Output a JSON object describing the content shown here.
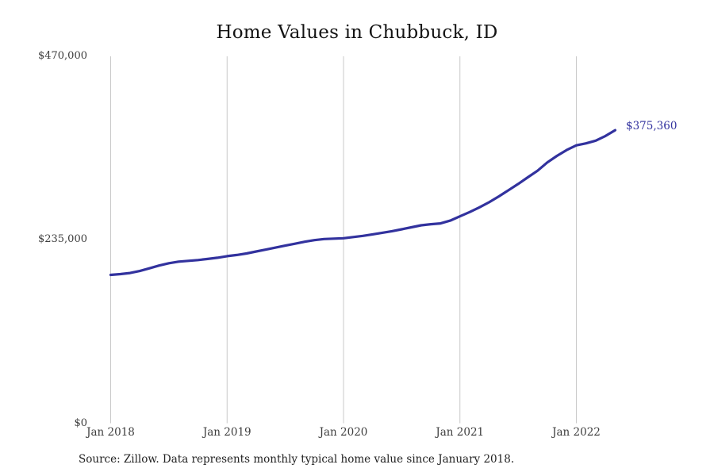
{
  "chart": {
    "title": "Home Values in Chubbuck, ID",
    "end_label": "$375,360",
    "source": "Source: Zillow. Data represents monthly typical home value since January 2018."
  },
  "chart_data": {
    "type": "line",
    "title": "Home Values in Chubbuck, ID",
    "xlabel": "",
    "ylabel": "",
    "ylim": [
      0,
      470000
    ],
    "grid": "vertical-only",
    "legend": "none",
    "line_color": "#32329e",
    "gridline_color": "#c9c9c9",
    "annotation_color": "#32329e",
    "end_annotation": "$375,360",
    "y_ticks": [
      {
        "value": 0,
        "label": "$0"
      },
      {
        "value": 235000,
        "label": "$235,000"
      },
      {
        "value": 470000,
        "label": "$470,000"
      }
    ],
    "x_tick_labels": [
      "Jan 2018",
      "Jan 2019",
      "Jan 2020",
      "Jan 2021",
      "Jan 2022"
    ],
    "x_tick_indices": [
      0,
      12,
      24,
      36,
      48
    ],
    "x": [
      "Jan 2018",
      "Feb 2018",
      "Mar 2018",
      "Apr 2018",
      "May 2018",
      "Jun 2018",
      "Jul 2018",
      "Aug 2018",
      "Sep 2018",
      "Oct 2018",
      "Nov 2018",
      "Dec 2018",
      "Jan 2019",
      "Feb 2019",
      "Mar 2019",
      "Apr 2019",
      "May 2019",
      "Jun 2019",
      "Jul 2019",
      "Aug 2019",
      "Sep 2019",
      "Oct 2019",
      "Nov 2019",
      "Dec 2019",
      "Jan 2020",
      "Feb 2020",
      "Mar 2020",
      "Apr 2020",
      "May 2020",
      "Jun 2020",
      "Jul 2020",
      "Aug 2020",
      "Sep 2020",
      "Oct 2020",
      "Nov 2020",
      "Dec 2020",
      "Jan 2021",
      "Feb 2021",
      "Mar 2021",
      "Apr 2021",
      "May 2021",
      "Jun 2021",
      "Jul 2021",
      "Aug 2021",
      "Sep 2021",
      "Oct 2021",
      "Nov 2021",
      "Dec 2021",
      "Jan 2022",
      "Feb 2022",
      "Mar 2022",
      "Apr 2022",
      "May 2022"
    ],
    "values": [
      190000,
      191000,
      192500,
      195000,
      198500,
      202000,
      205000,
      207000,
      208000,
      209000,
      210500,
      212000,
      214000,
      215500,
      217500,
      220000,
      222500,
      225000,
      227500,
      230000,
      232500,
      234500,
      236000,
      236500,
      237000,
      238500,
      240000,
      242000,
      244000,
      246000,
      248500,
      251000,
      253500,
      255000,
      256000,
      259500,
      265000,
      270500,
      276500,
      283000,
      290500,
      298500,
      306500,
      315000,
      323500,
      334000,
      342500,
      350000,
      356000,
      358500,
      362000,
      368000,
      375360
    ]
  }
}
